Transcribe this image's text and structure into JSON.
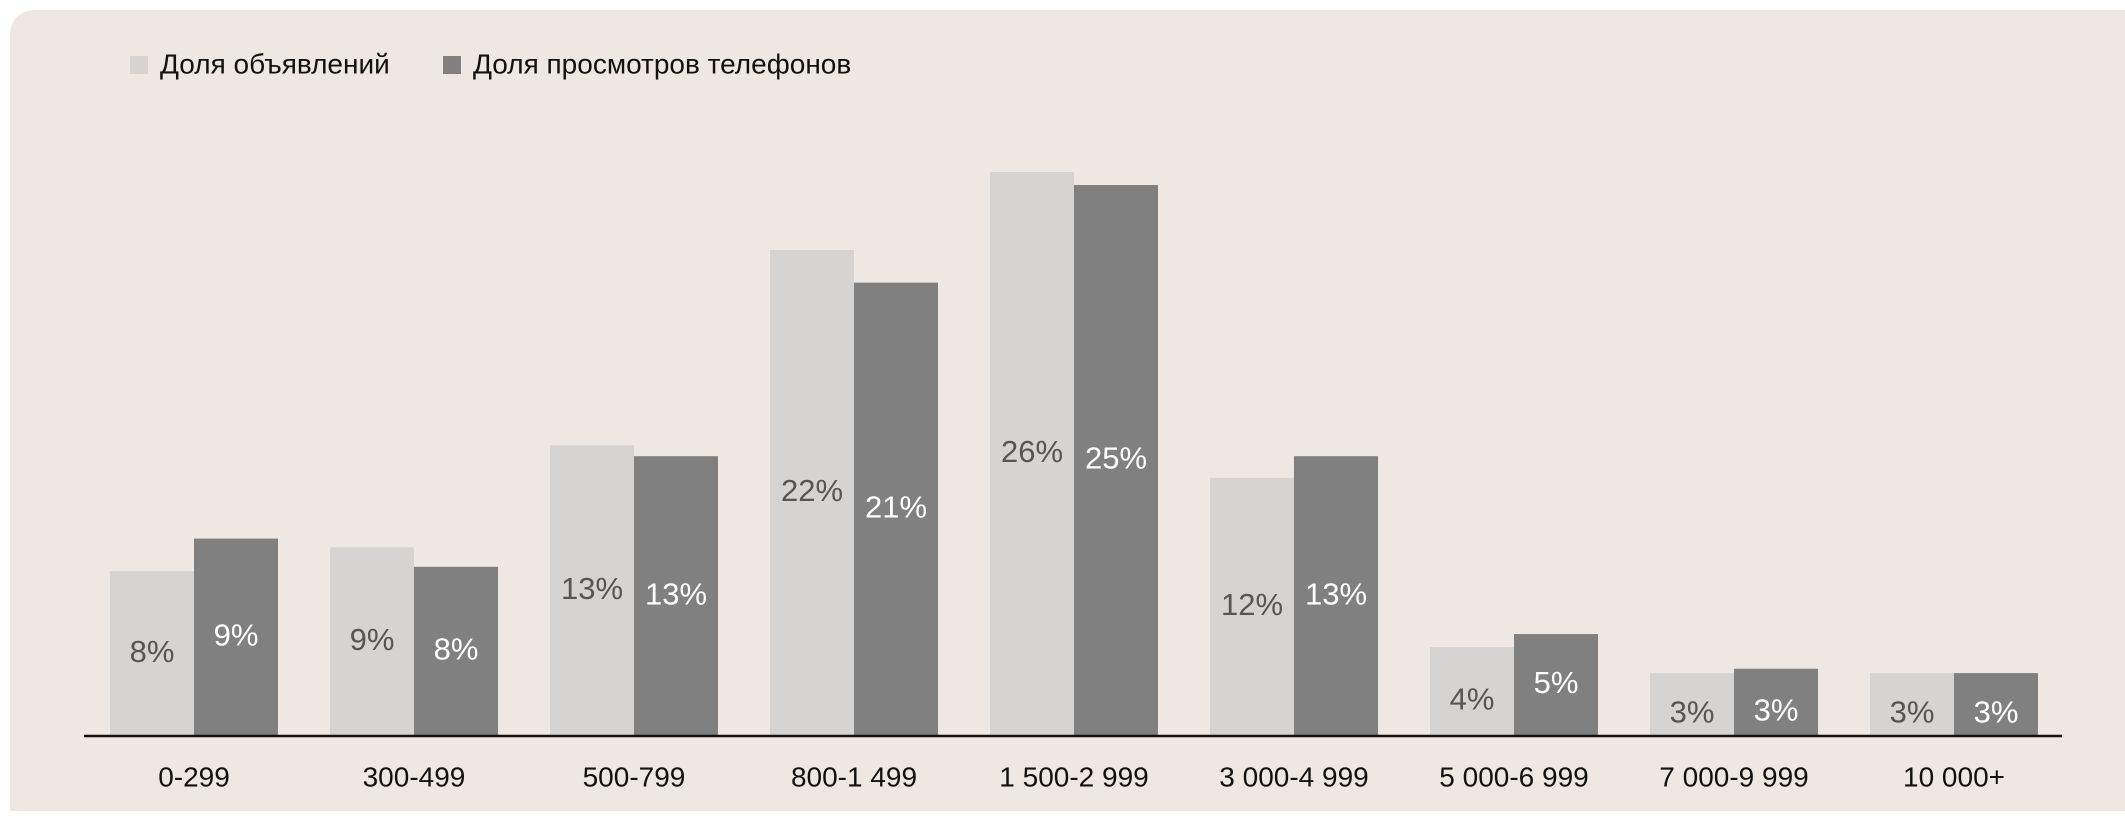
{
  "chart_data": {
    "type": "bar",
    "categories": [
      "0-299",
      "300-499",
      "500-799",
      "800-1 499",
      "1 500-2 999",
      "3 000-4 999",
      "5 000-6 999",
      "7 000-9 999",
      "10 000+"
    ],
    "series": [
      {
        "name": "Доля объявлений",
        "color": "#d5d4d2",
        "label_color": "#555555",
        "values": [
          7.6,
          8.7,
          13.4,
          22.4,
          26.0,
          11.9,
          4.1,
          2.9,
          2.9
        ],
        "value_labels": [
          "8%",
          "9%",
          "13%",
          "22%",
          "26%",
          "12%",
          "4%",
          "3%",
          "3%"
        ]
      },
      {
        "name": "Доля просмотров телефонов",
        "color": "#808080",
        "label_color": "#ffffff",
        "values": [
          9.1,
          7.8,
          12.9,
          20.9,
          25.4,
          12.9,
          4.7,
          3.1,
          2.9
        ],
        "value_labels": [
          "9%",
          "8%",
          "13%",
          "21%",
          "25%",
          "13%",
          "5%",
          "3%",
          "3%"
        ]
      }
    ],
    "legend": "top-left"
  }
}
